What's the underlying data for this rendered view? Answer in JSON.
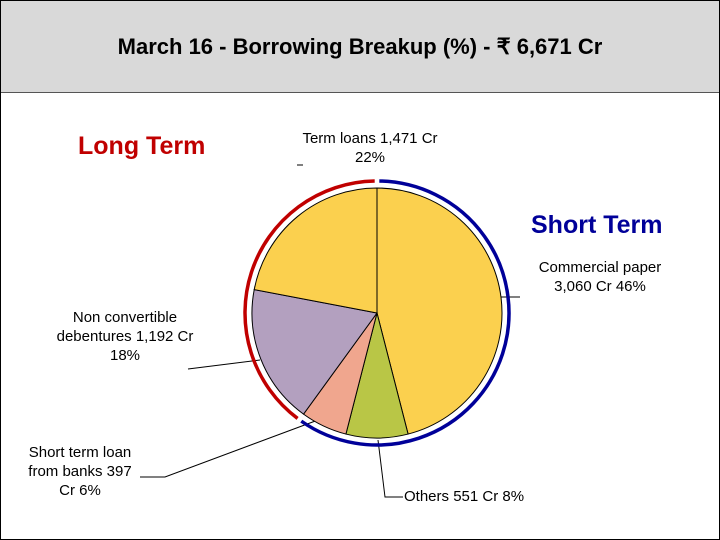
{
  "chart_data": {
    "type": "pie",
    "title": "March 16 -  Borrowing Breakup (%) - ₹ 6,671 Cr",
    "annotations": [
      "Long Term",
      "Short Term"
    ],
    "categories": [
      "Commercial paper",
      "Others",
      "Short term loan from banks",
      "Non convertible debentures",
      "Term loans"
    ],
    "values": [
      46,
      8,
      6,
      18,
      22
    ],
    "value_labels": [
      "3,060 Cr 46%",
      "551 Cr 8%",
      "397 Cr 6%",
      "1,192 Cr 18%",
      "1,471 Cr 22%"
    ],
    "colors": [
      "#fbd04e",
      "#b9c646",
      "#f0a68e",
      "#b3a0bf",
      "#fbd04e"
    ]
  }
}
